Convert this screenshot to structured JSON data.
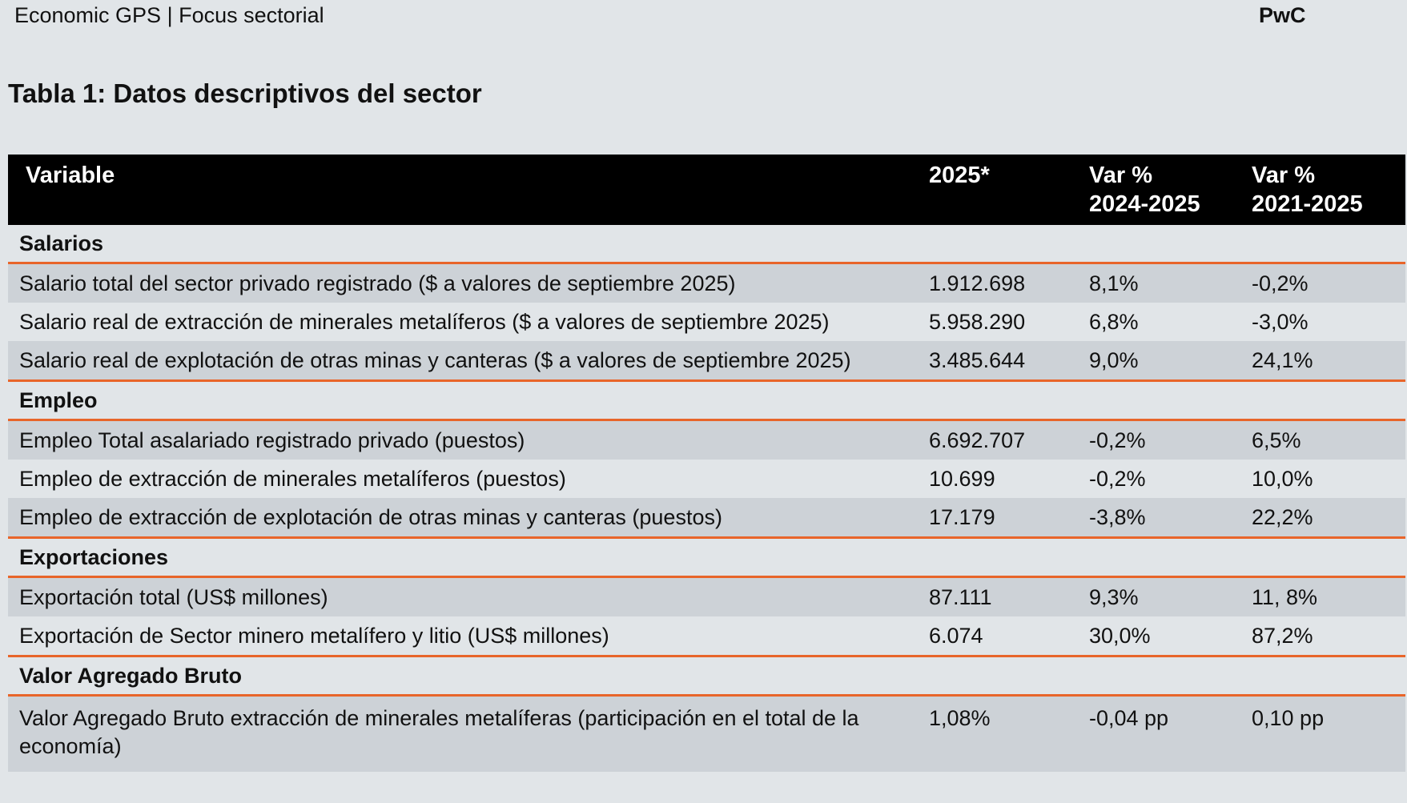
{
  "header": {
    "left": "Economic GPS | Focus sectorial",
    "right": "PwC"
  },
  "title": "Tabla 1: Datos descriptivos del sector",
  "table": {
    "columns": [
      "Variable",
      "2025*",
      "Var %\n2024-2025",
      "Var %\n2021-2025"
    ],
    "sections": [
      {
        "name": "Salarios",
        "rows": [
          [
            "Salario total del sector privado registrado ($ a valores de septiembre 2025)",
            "1.912.698",
            "8,1%",
            "-0,2%"
          ],
          [
            "Salario real de extracción de minerales metalíferos ($ a valores de septiembre 2025)",
            "5.958.290",
            "6,8%",
            "-3,0%"
          ],
          [
            "Salario real de explotación de otras minas y canteras ($ a valores de septiembre 2025)",
            "3.485.644",
            "9,0%",
            "24,1%"
          ]
        ]
      },
      {
        "name": "Empleo",
        "rows": [
          [
            "Empleo Total asalariado registrado privado (puestos)",
            "6.692.707",
            "-0,2%",
            "6,5%"
          ],
          [
            "Empleo de extracción de minerales metalíferos (puestos)",
            "10.699",
            "-0,2%",
            "10,0%"
          ],
          [
            "Empleo de extracción de explotación de otras minas y canteras (puestos)",
            "17.179",
            "-3,8%",
            "22,2%"
          ]
        ]
      },
      {
        "name": "Exportaciones",
        "rows": [
          [
            "Exportación total (US$ millones)",
            "87.111",
            "9,3%",
            "11, 8%"
          ],
          [
            "Exportación de Sector minero metalífero y litio (US$ millones)",
            "6.074",
            "30,0%",
            "87,2%"
          ]
        ]
      },
      {
        "name": "Valor Agregado Bruto",
        "rows": [
          [
            "Valor Agregado Bruto extracción de minerales metalíferas (participación en el total de la economía)",
            "1,08%",
            "-0,04 pp",
            "0,10 pp"
          ]
        ]
      }
    ]
  },
  "colors": {
    "accent": "#e8652a",
    "header_bg": "#000000",
    "row_shade": "#cdd2d7",
    "background": "#e1e5e8"
  }
}
